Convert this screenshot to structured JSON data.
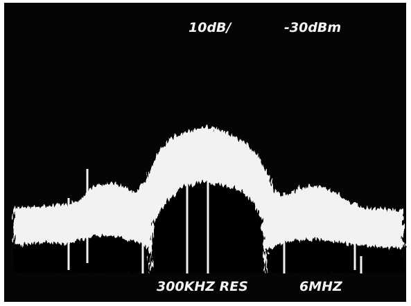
{
  "display": {
    "scale": "10dB/",
    "reference": "-30dBm",
    "resolution": "300KHZ RES",
    "span": "6MHZ"
  }
}
